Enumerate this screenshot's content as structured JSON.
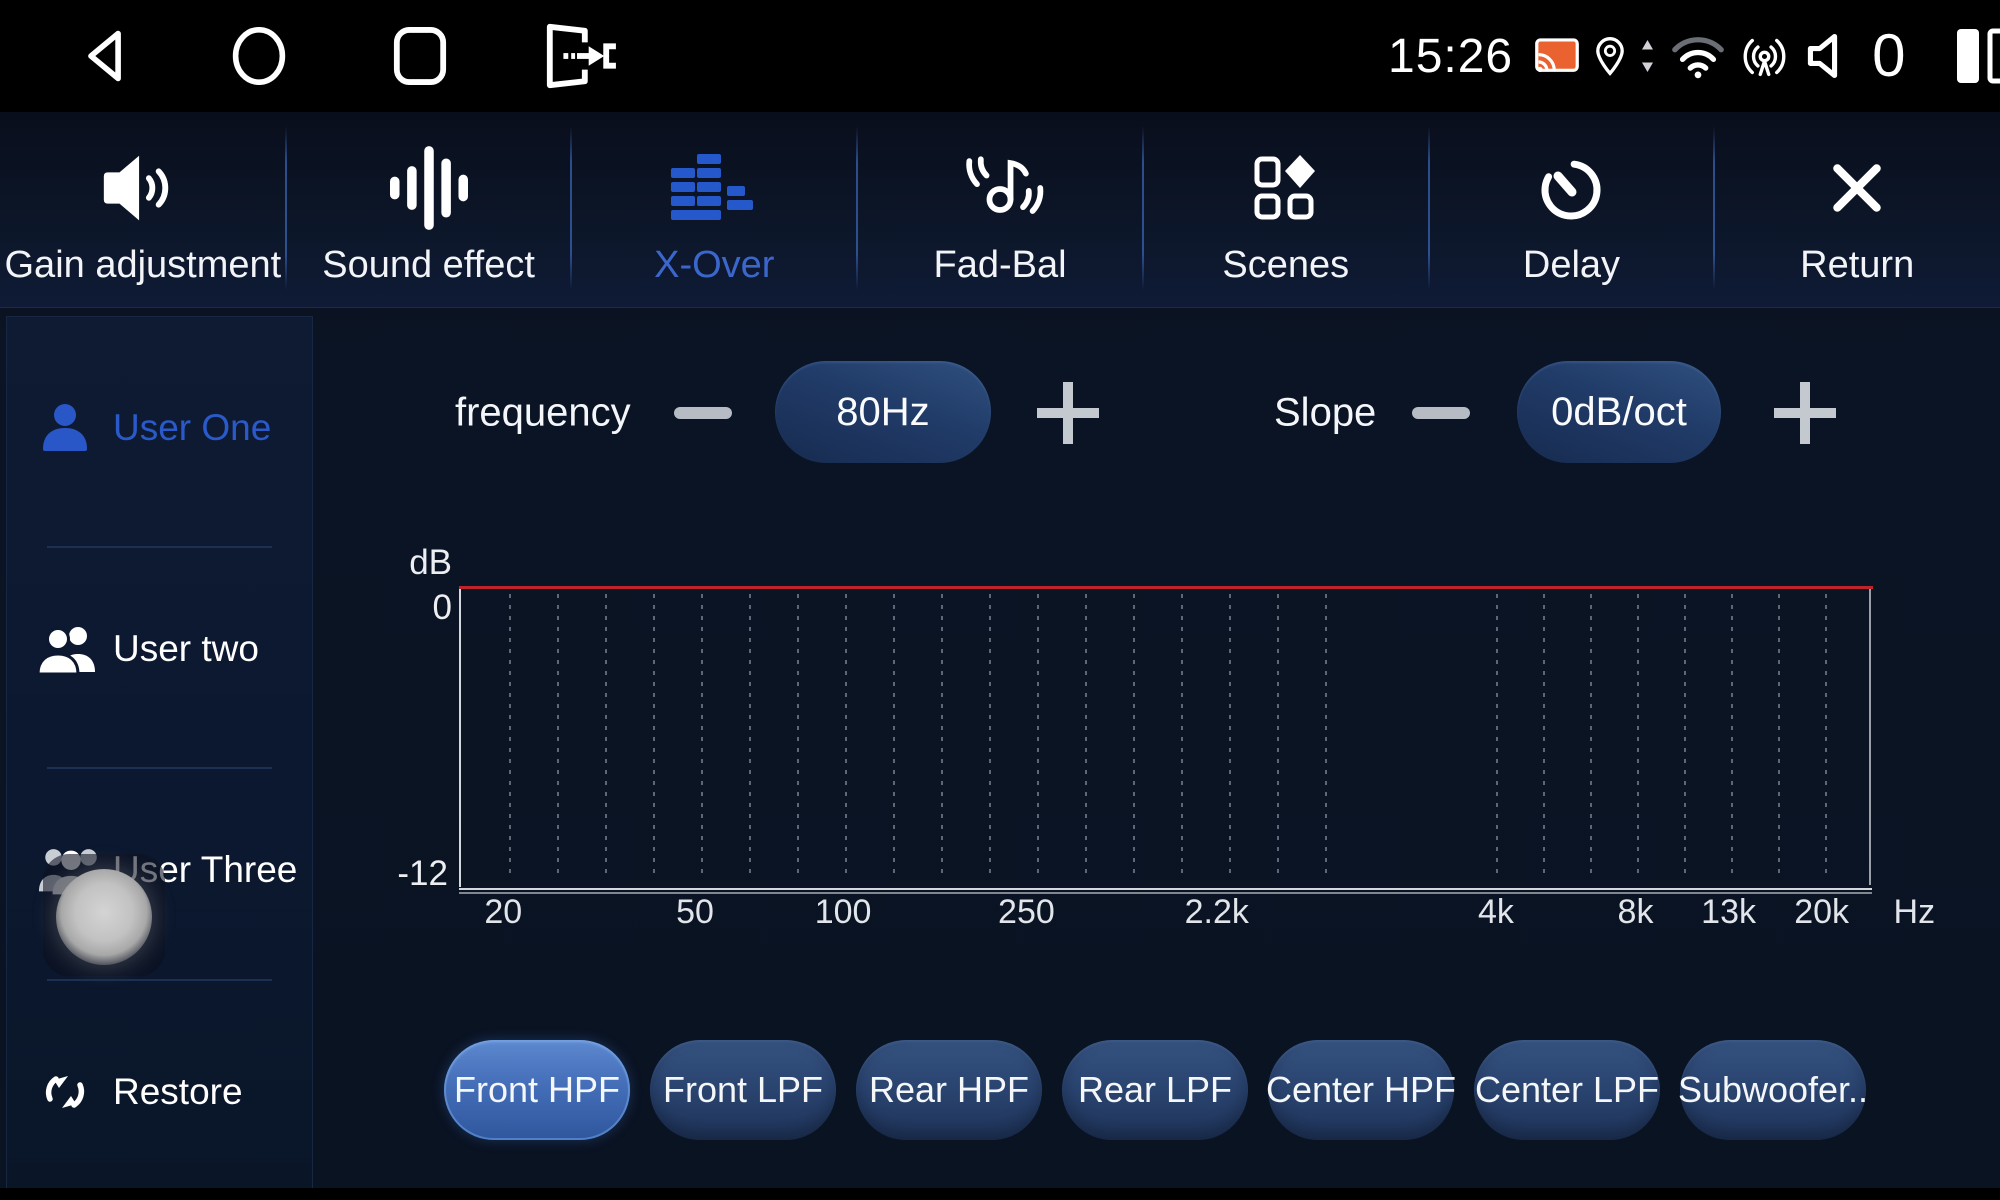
{
  "status_bar": {
    "time": "15:26",
    "volume_level": "0",
    "nav_icons": [
      "back-icon",
      "home-circle-icon",
      "recents-square-icon",
      "exit-app-icon"
    ],
    "status_icons": [
      "cast-icon",
      "location-pin-icon",
      "updown-arrows-icon",
      "wifi-icon",
      "hotspot-icon",
      "volume-speaker-icon"
    ],
    "trailing_icon": "split-screen-icon"
  },
  "tab_bar": {
    "tabs": [
      {
        "id": "gain-adjustment",
        "label": "Gain adjustment",
        "icon": "speaker-gain-icon",
        "active": false
      },
      {
        "id": "sound-effect",
        "label": "Sound effect",
        "icon": "equalizer-bars-icon",
        "active": false
      },
      {
        "id": "x-over",
        "label": "X-Over",
        "icon": "crossover-histogram-icon",
        "active": true
      },
      {
        "id": "fad-bal",
        "label": "Fad-Bal",
        "icon": "note-balance-icon",
        "active": false
      },
      {
        "id": "scenes",
        "label": "Scenes",
        "icon": "scenes-grid-icon",
        "active": false
      },
      {
        "id": "delay",
        "label": "Delay",
        "icon": "timer-icon",
        "active": false
      },
      {
        "id": "return",
        "label": "Return",
        "icon": "close-x-icon",
        "active": false
      }
    ]
  },
  "sidebar": {
    "items": [
      {
        "id": "user-one",
        "label": "User One",
        "icon": "user-one-icon",
        "active": true,
        "pressed": false
      },
      {
        "id": "user-two",
        "label": "User two",
        "icon": "user-two-icon",
        "active": false,
        "pressed": false
      },
      {
        "id": "user-three",
        "label": "User Three",
        "icon": "user-three-icon",
        "active": false,
        "pressed": true
      },
      {
        "id": "restore",
        "label": "Restore",
        "icon": "restore-icon",
        "active": false,
        "pressed": false
      }
    ]
  },
  "controls": {
    "frequency": {
      "label": "frequency",
      "value": "80Hz"
    },
    "slope": {
      "label": "Slope",
      "value": "0dB/oct"
    }
  },
  "chart_data": {
    "type": "line",
    "title": "",
    "ylabel": "dB",
    "x_unit": "Hz",
    "x_scale": "log",
    "xlim_hz": [
      20,
      20000
    ],
    "ylim": [
      -12,
      0
    ],
    "y_ticks": [
      {
        "label": "0",
        "value": 0
      },
      {
        "label": "-12",
        "value": -12
      }
    ],
    "x_ticks": [
      {
        "label": "20",
        "pos_pct": 3.0
      },
      {
        "label": "50",
        "pos_pct": 16.6
      },
      {
        "label": "100",
        "pos_pct": 27.1
      },
      {
        "label": "250",
        "pos_pct": 40.1
      },
      {
        "label": "2.2k",
        "pos_pct": 53.6
      },
      {
        "label": "4k",
        "pos_pct": 73.4
      },
      {
        "label": "8k",
        "pos_pct": 83.3
      },
      {
        "label": "13k",
        "pos_pct": 89.9
      },
      {
        "label": "20k",
        "pos_pct": 96.5
      }
    ],
    "x_unit_pos_pct": 101.6,
    "grid": "dotted-vertical",
    "gridline_pos_pct": [
      3.4,
      6.81,
      10.21,
      13.62,
      17.02,
      20.43,
      23.83,
      27.23,
      30.64,
      34.04,
      37.45,
      40.85,
      44.26,
      47.66,
      51.06,
      54.47,
      57.87,
      61.28,
      73.4,
      76.74,
      80.07,
      83.4,
      86.74,
      90.07,
      93.4,
      96.74
    ],
    "series": [
      {
        "name": "crossover-response",
        "color": "#c1232b",
        "points": [
          {
            "x_hz": 20,
            "y_db": 0
          },
          {
            "x_hz": 20000,
            "y_db": 0
          }
        ]
      }
    ]
  },
  "filter_buttons": [
    {
      "label": "Front HPF",
      "active": true
    },
    {
      "label": "Front LPF",
      "active": false
    },
    {
      "label": "Rear HPF",
      "active": false
    },
    {
      "label": "Rear LPF",
      "active": false
    },
    {
      "label": "Center HPF",
      "active": false
    },
    {
      "label": "Center LPF",
      "active": false
    },
    {
      "label": "Subwoofer..",
      "active": false
    }
  ],
  "colors": {
    "accent_blue": "#2a5ac9",
    "tab_active_blue": "#3b67cd",
    "response_line_red": "#c1232b",
    "selected_button_blue": "#446eb8",
    "cast_icon_orange": "#ea6230"
  }
}
